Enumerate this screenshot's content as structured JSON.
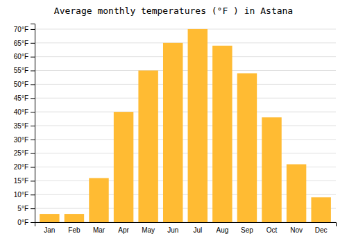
{
  "chart_data": {
    "type": "bar",
    "title": "Average monthly temperatures (°F ) in Astana",
    "categories": [
      "Jan",
      "Feb",
      "Mar",
      "Apr",
      "May",
      "Jun",
      "Jul",
      "Aug",
      "Sep",
      "Oct",
      "Nov",
      "Dec"
    ],
    "values": [
      3,
      3,
      16,
      40,
      55,
      65,
      70,
      64,
      54,
      38,
      21,
      9
    ],
    "color": "#FFBB33",
    "ylim": [
      0,
      72
    ],
    "yticks": [
      {
        "value": 0,
        "label": "0°F"
      },
      {
        "value": 5,
        "label": "5°F"
      },
      {
        "value": 10,
        "label": "10°F"
      },
      {
        "value": 15,
        "label": "15°F"
      },
      {
        "value": 20,
        "label": "20°F"
      },
      {
        "value": 25,
        "label": "25°F"
      },
      {
        "value": 30,
        "label": "30°F"
      },
      {
        "value": 35,
        "label": "35°F"
      },
      {
        "value": 40,
        "label": "40°F"
      },
      {
        "value": 45,
        "label": "45°F"
      },
      {
        "value": 50,
        "label": "50°F"
      },
      {
        "value": 55,
        "label": "55°F"
      },
      {
        "value": 60,
        "label": "60°F"
      },
      {
        "value": 65,
        "label": "65°F"
      },
      {
        "value": 70,
        "label": "70°F"
      }
    ],
    "grid": true
  }
}
